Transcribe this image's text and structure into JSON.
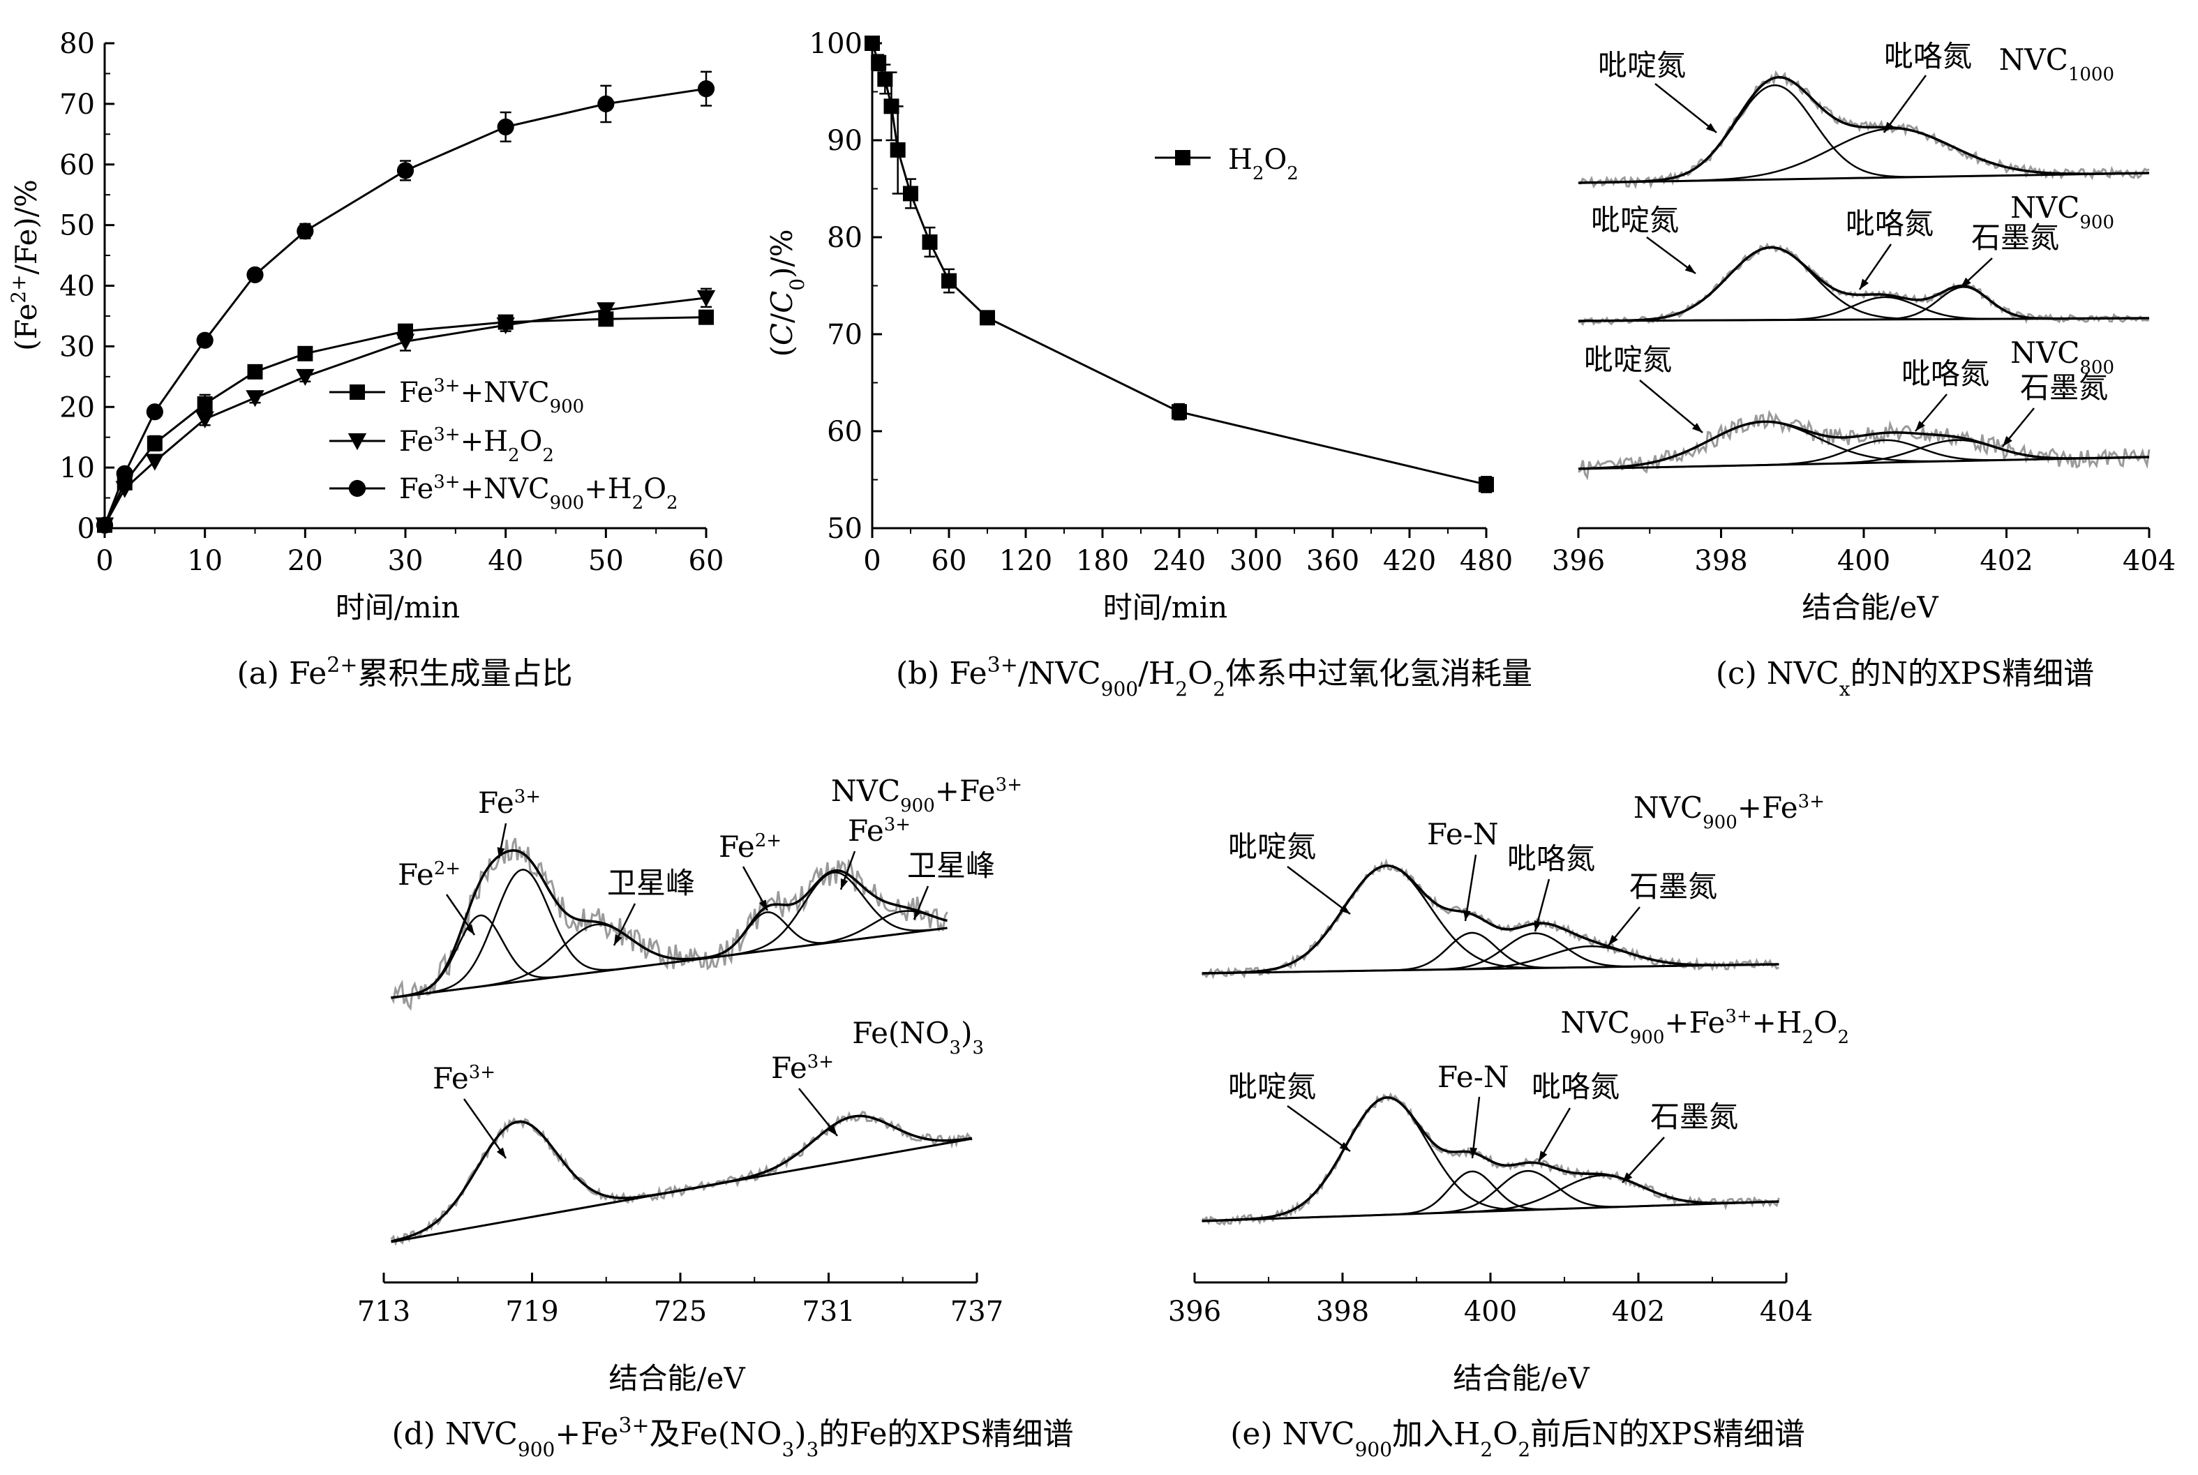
{
  "colors": {
    "line": "#000000",
    "raw": "#9a9a9a",
    "background": "#ffffff"
  },
  "chart_data": [
    {
      "id": "a",
      "type": "line",
      "caption": "(a) Fe²⁺累积生成量占比",
      "xlabel": "时间/min",
      "ylabel": "(Fe²⁺/Fe)/%",
      "xlim": [
        0,
        60
      ],
      "ylim": [
        0,
        80
      ],
      "xticks": [
        0,
        10,
        20,
        30,
        40,
        50,
        60
      ],
      "yticks": [
        0,
        10,
        20,
        30,
        40,
        50,
        60,
        70,
        80
      ],
      "legend_position": "center-right",
      "series": [
        {
          "name": "Fe³⁺+NVC₉₀₀",
          "marker": "square",
          "x": [
            0,
            2,
            5,
            10,
            15,
            20,
            30,
            40,
            50,
            60
          ],
          "y": [
            0.5,
            7.5,
            14,
            20.5,
            25.8,
            28.8,
            32.5,
            34,
            34.5,
            34.8
          ],
          "err": [
            0,
            0,
            1.2,
            1.5,
            0.8,
            0.8,
            1,
            1,
            1,
            1
          ]
        },
        {
          "name": "Fe³⁺+H₂O₂",
          "marker": "triangle-down",
          "x": [
            0,
            2,
            5,
            10,
            15,
            20,
            30,
            40,
            50,
            60
          ],
          "y": [
            0.5,
            6.5,
            11,
            18,
            21.5,
            25,
            30.8,
            33.5,
            36,
            38
          ],
          "err": [
            0,
            0,
            0,
            1,
            0.8,
            0.8,
            1.5,
            1,
            0.8,
            1.5
          ]
        },
        {
          "name": "Fe³⁺+NVC₉₀₀+H₂O₂",
          "marker": "circle",
          "x": [
            0,
            2,
            5,
            10,
            15,
            20,
            30,
            40,
            50,
            60
          ],
          "y": [
            0.5,
            9,
            19.2,
            31,
            41.8,
            49,
            59,
            66.2,
            70,
            72.5
          ],
          "err": [
            0,
            0.5,
            0.8,
            0.8,
            0.8,
            1.2,
            1.6,
            2.4,
            3,
            2.8
          ]
        }
      ]
    },
    {
      "id": "b",
      "type": "line",
      "caption": "(b) Fe³⁺/NVC₉₀₀/H₂O₂体系中过氧化氢消耗量",
      "xlabel": "时间/min",
      "ylabel": "(C/C₀)/%",
      "xlim": [
        0,
        480
      ],
      "ylim": [
        50,
        100
      ],
      "xticks": [
        0,
        60,
        120,
        180,
        240,
        300,
        360,
        420,
        480
      ],
      "yticks": [
        50,
        60,
        70,
        80,
        90,
        100
      ],
      "legend_position": "top-center",
      "series": [
        {
          "name": "H₂O₂",
          "marker": "square",
          "x": [
            0,
            5,
            10,
            15,
            20,
            30,
            45,
            60,
            90,
            120,
            240,
            480
          ],
          "y": [
            100,
            98,
            96.3,
            93.5,
            89,
            84.5,
            79.5,
            75.5,
            71.7,
            62,
            54.5,
            null
          ],
          "err": [
            0,
            0.8,
            1.5,
            3.5,
            4.5,
            1.5,
            1.5,
            1.2,
            0.5,
            0.8,
            0.8,
            0
          ]
        }
      ]
    },
    {
      "id": "c",
      "type": "line",
      "caption": "(c) NVCₓ的N的XPS精细谱",
      "xlabel": "结合能/eV",
      "xlim": [
        396,
        404
      ],
      "xticks": [
        396,
        398,
        400,
        402,
        404
      ],
      "spectra": [
        {
          "label": "NVC₁₀₀₀",
          "peaks": [
            {
              "name": "吡啶氮",
              "center": 398.75
            },
            {
              "name": "吡咯氮",
              "center": 400.4
            }
          ]
        },
        {
          "label": "NVC₉₀₀",
          "peaks": [
            {
              "name": "吡啶氮",
              "center": 398.7
            },
            {
              "name": "吡咯氮",
              "center": 400.3
            },
            {
              "name": "石墨氮",
              "center": 401.4
            }
          ]
        },
        {
          "label": "NVC₈₀₀",
          "peaks": [
            {
              "name": "吡啶氮",
              "center": 398.6
            },
            {
              "name": "吡咯氮",
              "center": 400.3
            },
            {
              "name": "石墨氮",
              "center": 401.4
            }
          ]
        }
      ]
    },
    {
      "id": "d",
      "type": "line",
      "caption": "(d) NVC₉₀₀+Fe³⁺及Fe(NO₃)₃的Fe的XPS精细谱",
      "xlabel": "结合能/eV",
      "xlim": [
        713,
        737
      ],
      "xticks": [
        713,
        719,
        725,
        731,
        737
      ],
      "spectra": [
        {
          "label": "NVC₉₀₀+Fe³⁺",
          "peaks": [
            {
              "name": "Fe²⁺",
              "center": 716.8
            },
            {
              "name": "Fe³⁺",
              "center": 718.5
            },
            {
              "name": "卫星峰",
              "center": 721.5
            },
            {
              "name": "Fe²⁺",
              "center": 728.5
            },
            {
              "name": "Fe³⁺",
              "center": 731.2
            },
            {
              "name": "卫星峰",
              "center": 734
            }
          ]
        },
        {
          "label": "Fe(NO₃)₃",
          "peaks": [
            {
              "name": "Fe³⁺",
              "center": 718.5
            },
            {
              "name": "Fe³⁺",
              "center": 732
            }
          ]
        }
      ]
    },
    {
      "id": "e",
      "type": "line",
      "caption": "(e) NVC₉₀₀加入H₂O₂前后N的XPS精细谱",
      "xlabel": "结合能/eV",
      "xlim": [
        396,
        404
      ],
      "xticks": [
        396,
        398,
        400,
        402,
        404
      ],
      "spectra": [
        {
          "label": "NVC₉₀₀+Fe³⁺",
          "peaks": [
            {
              "name": "吡啶氮",
              "center": 398.6
            },
            {
              "name": "Fe-N",
              "center": 399.7
            },
            {
              "name": "吡咯氮",
              "center": 400.6
            },
            {
              "name": "石墨氮",
              "center": 401.4
            }
          ]
        },
        {
          "label": "NVC₉₀₀+Fe³⁺+H₂O₂",
          "peaks": [
            {
              "name": "吡啶氮",
              "center": 398.6
            },
            {
              "name": "Fe-N",
              "center": 399.7
            },
            {
              "name": "吡咯氮",
              "center": 400.5
            },
            {
              "name": "石墨氮",
              "center": 401.5
            }
          ]
        }
      ]
    }
  ]
}
